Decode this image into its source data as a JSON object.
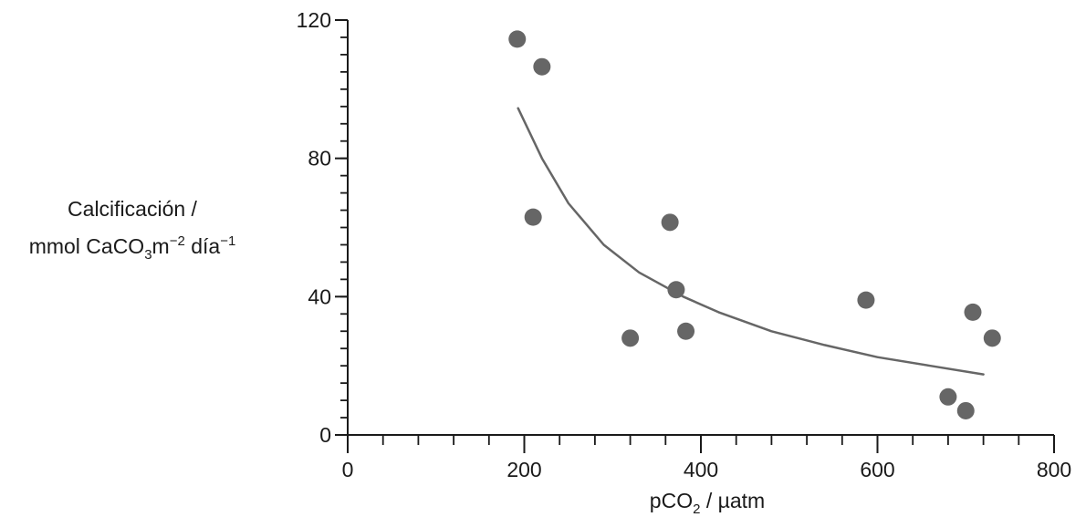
{
  "chart_data": {
    "type": "scatter",
    "xlabel": {
      "prefix": "pCO",
      "sub": "2",
      "suffix": " / µatm"
    },
    "ylabel": {
      "line1": "Calcificación /",
      "line2_a": "mmol CaCO",
      "line2_sub": "3",
      "line2_b": "m",
      "line2_sup1": "−2",
      "line2_c": " día",
      "line2_sup2": "−1"
    },
    "xlim": [
      0,
      800
    ],
    "ylim": [
      0,
      120
    ],
    "x_ticks": [
      0,
      200,
      400,
      600,
      800
    ],
    "y_ticks": [
      0,
      40,
      80,
      120
    ],
    "x_tick_labels": [
      "0",
      "200",
      "400",
      "600",
      "800"
    ],
    "y_tick_labels": [
      "0",
      "40",
      "80",
      "120"
    ],
    "x_minor_step": 40,
    "y_minor_step": 5,
    "grid": false,
    "point_color": "#666666",
    "curve_color": "#666666",
    "points": [
      {
        "x": 192,
        "y": 114.5
      },
      {
        "x": 220,
        "y": 106.5
      },
      {
        "x": 210,
        "y": 63
      },
      {
        "x": 320,
        "y": 28
      },
      {
        "x": 365,
        "y": 61.5
      },
      {
        "x": 372,
        "y": 42
      },
      {
        "x": 383,
        "y": 30
      },
      {
        "x": 587,
        "y": 39
      },
      {
        "x": 680,
        "y": 11
      },
      {
        "x": 700,
        "y": 7
      },
      {
        "x": 708,
        "y": 35.5
      },
      {
        "x": 730,
        "y": 28
      }
    ],
    "trend_curve": [
      {
        "x": 193,
        "y": 94.5
      },
      {
        "x": 220,
        "y": 80
      },
      {
        "x": 250,
        "y": 67
      },
      {
        "x": 290,
        "y": 55
      },
      {
        "x": 330,
        "y": 47
      },
      {
        "x": 380,
        "y": 40
      },
      {
        "x": 420,
        "y": 35.5
      },
      {
        "x": 480,
        "y": 30
      },
      {
        "x": 540,
        "y": 26
      },
      {
        "x": 600,
        "y": 22.5
      },
      {
        "x": 660,
        "y": 20
      },
      {
        "x": 720,
        "y": 17.5
      }
    ]
  }
}
